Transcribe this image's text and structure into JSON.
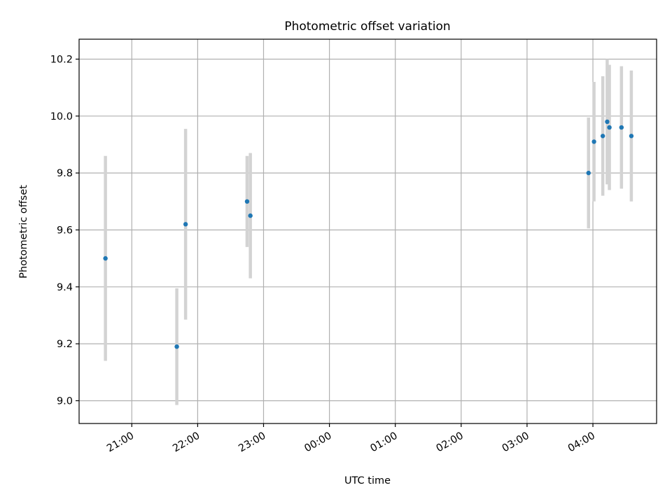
{
  "chart_data": {
    "type": "scatter",
    "title": "Photometric offset variation",
    "xlabel": "UTC time",
    "ylabel": "Photometric offset",
    "x_unit": "hours",
    "x_tick_labels": [
      "21:00",
      "22:00",
      "23:00",
      "00:00",
      "01:00",
      "02:00",
      "03:00",
      "04:00"
    ],
    "y_ticks": [
      9.0,
      9.2,
      9.4,
      9.6,
      9.8,
      10.0,
      10.2
    ],
    "xlim": [
      "20:12",
      "04:58"
    ],
    "ylim": [
      8.92,
      10.27
    ],
    "grid": true,
    "points": [
      {
        "x": "20:36",
        "y": 9.5,
        "err": 0.36
      },
      {
        "x": "21:41",
        "y": 9.19,
        "err": 0.205
      },
      {
        "x": "21:49",
        "y": 9.62,
        "err": 0.335
      },
      {
        "x": "22:45",
        "y": 9.7,
        "err": 0.16
      },
      {
        "x": "22:48",
        "y": 9.65,
        "err": 0.22
      },
      {
        "x": "03:56",
        "y": 9.8,
        "err": 0.195
      },
      {
        "x": "04:01",
        "y": 9.91,
        "err": 0.21
      },
      {
        "x": "04:09",
        "y": 9.93,
        "err": 0.21
      },
      {
        "x": "04:13",
        "y": 9.98,
        "err": 0.22
      },
      {
        "x": "04:15",
        "y": 9.96,
        "err": 0.22
      },
      {
        "x": "04:26",
        "y": 9.96,
        "err": 0.215
      },
      {
        "x": "04:35",
        "y": 9.93,
        "err": 0.23
      }
    ],
    "colors": {
      "marker": "#1f77b4",
      "errorbar": "#d3d3d3",
      "grid": "#b0b0b0",
      "axes": "#000000"
    }
  }
}
